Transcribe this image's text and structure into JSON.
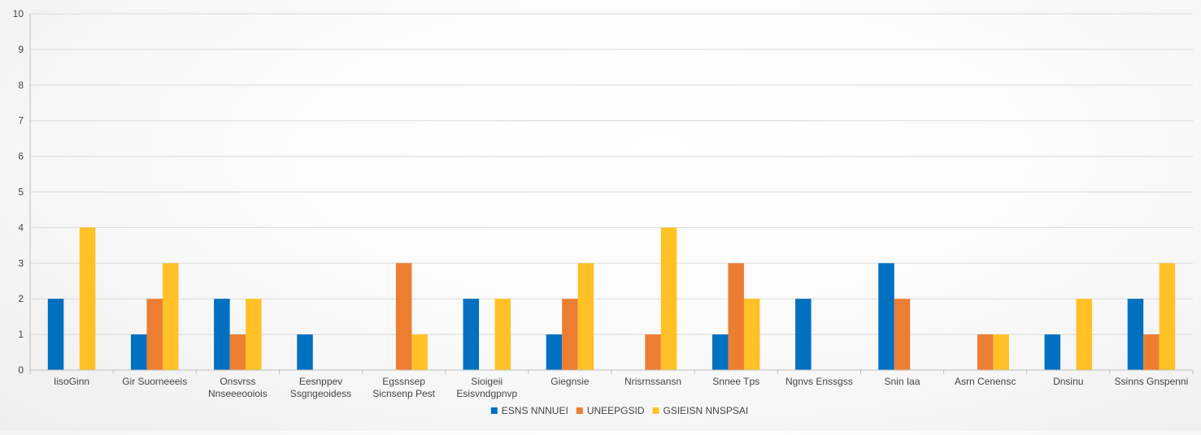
{
  "chart_data": {
    "type": "bar",
    "categories": [
      [
        "IisoGinn"
      ],
      [
        "Gir Suorneeeis"
      ],
      [
        "Onsvrss",
        "Nnseeeooiois"
      ],
      [
        "Eesnppev",
        "Ssgngeoidess"
      ],
      [
        "Egssnsep",
        "Sicnsenp Pest"
      ],
      [
        "Sioigeii",
        "Esisvndgpnvp"
      ],
      [
        "Giegnsie"
      ],
      [
        "Nrisrnssansn"
      ],
      [
        "Snnee Tps"
      ],
      [
        "Ngnvs Enssgss"
      ],
      [
        "Snin Iaa"
      ],
      [
        "Asrn Cenensc"
      ],
      [
        "Dnsinu"
      ],
      [
        "Ssinns Gnspenni"
      ]
    ],
    "series": [
      {
        "name": "ESNS NNNUEI",
        "color": "#0070c0",
        "values": [
          2,
          1,
          2,
          1,
          0,
          2,
          1,
          0,
          1,
          2,
          3,
          0,
          1,
          2
        ]
      },
      {
        "name": "UNEEPGSID",
        "color": "#ed7d31",
        "values": [
          0,
          2,
          1,
          0,
          3,
          0,
          2,
          1,
          3,
          0,
          2,
          1,
          0,
          1
        ]
      },
      {
        "name": "GSIEISN NNSPSAI",
        "color": "#ffc125",
        "values": [
          4,
          3,
          2,
          0,
          1,
          2,
          3,
          4,
          2,
          0,
          0,
          1,
          2,
          3
        ]
      }
    ],
    "ylim": [
      0,
      10
    ],
    "yticks": [
      0,
      1,
      2,
      3,
      4,
      5,
      6,
      7,
      8,
      9,
      10
    ],
    "grid": true,
    "legend": "bottom-center"
  }
}
